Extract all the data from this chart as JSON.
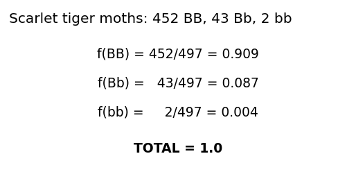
{
  "title_line": "Scarlet tiger moths: 452 BB, 43 Bb, 2 bb",
  "lines": [
    {
      "text": "f(BB) = 452/497 = 0.909",
      "bold": false
    },
    {
      "text": "f(Bb) =   43/497 = 0.087",
      "bold": false
    },
    {
      "text": "f(bb) =     2/497 = 0.004",
      "bold": false
    },
    {
      "text": "TOTAL = 1.0",
      "bold": true
    }
  ],
  "bg_color": "#ffffff",
  "text_color": "#000000",
  "title_fontsize": 14.5,
  "body_fontsize": 13.5,
  "fig_width": 5.14,
  "fig_height": 2.48,
  "dpi": 100
}
